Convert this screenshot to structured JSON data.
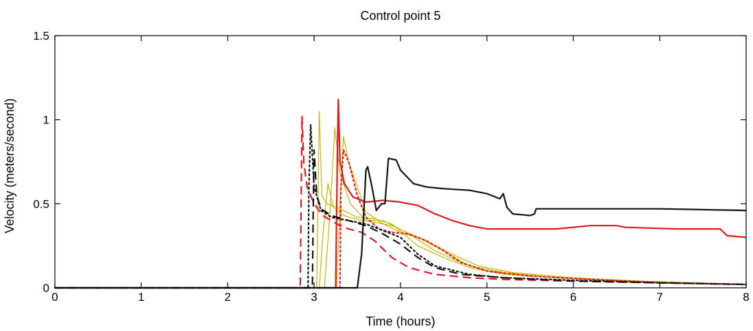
{
  "chart_data": {
    "type": "line",
    "title": "Control point 5",
    "xlabel": "Time (hours)",
    "ylabel": "Velocity (meters/second)",
    "xlim": [
      0,
      8
    ],
    "ylim": [
      0,
      1.5
    ],
    "xticks": [
      "0",
      "1",
      "2",
      "3",
      "4",
      "5",
      "6",
      "7",
      "8"
    ],
    "yticks": [
      "0",
      "0.5",
      "1",
      "1.5"
    ],
    "grid": false,
    "series": [
      {
        "color": "#c8b400",
        "dash": "solid",
        "width": 1.2,
        "points": [
          [
            0,
            0
          ],
          [
            3.03,
            0
          ],
          [
            3.04,
            0.35
          ],
          [
            3.06,
            1.05
          ],
          [
            3.09,
            0.55
          ],
          [
            3.15,
            0.5
          ],
          [
            3.3,
            0.47
          ],
          [
            3.5,
            0.42
          ],
          [
            3.7,
            0.41
          ],
          [
            3.9,
            0.38
          ],
          [
            4.2,
            0.25
          ],
          [
            4.5,
            0.18
          ],
          [
            4.8,
            0.12
          ],
          [
            5.2,
            0.08
          ],
          [
            5.8,
            0.06
          ],
          [
            6.5,
            0.04
          ],
          [
            7.2,
            0.03
          ],
          [
            8,
            0.02
          ]
        ]
      },
      {
        "color": "#c8b400",
        "dash": "solid",
        "width": 1.2,
        "points": [
          [
            0,
            0
          ],
          [
            3.06,
            0
          ],
          [
            3.1,
            0.3
          ],
          [
            3.16,
            0.62
          ],
          [
            3.22,
            0.48
          ],
          [
            3.35,
            0.43
          ],
          [
            3.55,
            0.4
          ],
          [
            3.8,
            0.4
          ],
          [
            4.1,
            0.32
          ],
          [
            4.4,
            0.22
          ],
          [
            4.7,
            0.15
          ],
          [
            5.0,
            0.1
          ],
          [
            5.5,
            0.07
          ],
          [
            6.2,
            0.05
          ],
          [
            7,
            0.03
          ],
          [
            8,
            0.02
          ]
        ]
      },
      {
        "color": "#c8b400",
        "dash": "solid",
        "width": 1.2,
        "points": [
          [
            0,
            0
          ],
          [
            3.12,
            0
          ],
          [
            3.18,
            0.42
          ],
          [
            3.24,
            0.95
          ],
          [
            3.3,
            0.68
          ],
          [
            3.42,
            0.5
          ],
          [
            3.6,
            0.4
          ],
          [
            3.9,
            0.37
          ],
          [
            4.2,
            0.3
          ],
          [
            4.5,
            0.22
          ],
          [
            4.8,
            0.13
          ],
          [
            5.2,
            0.09
          ],
          [
            5.8,
            0.06
          ],
          [
            6.5,
            0.045
          ],
          [
            7.3,
            0.03
          ],
          [
            8,
            0.02
          ]
        ]
      },
      {
        "color": "#c8b400",
        "dash": "solid",
        "width": 1.2,
        "points": [
          [
            0,
            0
          ],
          [
            3.26,
            0
          ],
          [
            3.3,
            0.5
          ],
          [
            3.34,
            0.9
          ],
          [
            3.4,
            0.75
          ],
          [
            3.5,
            0.6
          ],
          [
            3.6,
            0.45
          ],
          [
            3.8,
            0.38
          ],
          [
            4.0,
            0.33
          ],
          [
            4.3,
            0.28
          ],
          [
            4.6,
            0.2
          ],
          [
            4.9,
            0.13
          ],
          [
            5.3,
            0.09
          ],
          [
            6.0,
            0.06
          ],
          [
            6.8,
            0.04
          ],
          [
            8,
            0.02
          ]
        ]
      },
      {
        "color": "#e0191f",
        "dash": "solid",
        "width": 2.2,
        "points": [
          [
            0,
            0
          ],
          [
            3.25,
            0
          ],
          [
            3.27,
            0.8
          ],
          [
            3.28,
            1.12
          ],
          [
            3.3,
            0.75
          ],
          [
            3.35,
            0.62
          ],
          [
            3.45,
            0.54
          ],
          [
            3.6,
            0.51
          ],
          [
            3.8,
            0.52
          ],
          [
            4.0,
            0.51
          ],
          [
            4.2,
            0.49
          ],
          [
            4.4,
            0.44
          ],
          [
            4.6,
            0.4
          ],
          [
            4.8,
            0.37
          ],
          [
            5.0,
            0.35
          ],
          [
            5.5,
            0.35
          ],
          [
            5.8,
            0.35
          ],
          [
            6.2,
            0.37
          ],
          [
            6.5,
            0.37
          ],
          [
            6.6,
            0.36
          ],
          [
            7.2,
            0.35
          ],
          [
            7.7,
            0.35
          ],
          [
            7.78,
            0.31
          ],
          [
            8,
            0.3
          ]
        ]
      },
      {
        "color": "#e0191f",
        "dash": "dash",
        "width": 2.2,
        "points": [
          [
            0,
            0
          ],
          [
            2.84,
            0
          ],
          [
            2.85,
            0.5
          ],
          [
            2.86,
            1.02
          ],
          [
            2.88,
            0.75
          ],
          [
            2.92,
            0.6
          ],
          [
            3.0,
            0.5
          ],
          [
            3.1,
            0.43
          ],
          [
            3.2,
            0.4
          ],
          [
            3.3,
            0.37
          ],
          [
            3.4,
            0.35
          ],
          [
            3.55,
            0.33
          ],
          [
            3.7,
            0.28
          ],
          [
            3.9,
            0.18
          ],
          [
            4.1,
            0.12
          ],
          [
            4.4,
            0.08
          ],
          [
            4.8,
            0.06
          ],
          [
            5.2,
            0.05
          ],
          [
            6,
            0.04
          ],
          [
            7,
            0.03
          ],
          [
            8,
            0.02
          ]
        ]
      },
      {
        "color": "#e0191f",
        "dash": "dot",
        "width": 2.2,
        "points": [
          [
            0,
            0
          ],
          [
            3.3,
            0
          ],
          [
            3.31,
            0.6
          ],
          [
            3.34,
            0.82
          ],
          [
            3.4,
            0.75
          ],
          [
            3.5,
            0.55
          ],
          [
            3.6,
            0.42
          ],
          [
            3.75,
            0.35
          ],
          [
            3.9,
            0.33
          ],
          [
            4.1,
            0.32
          ],
          [
            4.3,
            0.28
          ],
          [
            4.5,
            0.22
          ],
          [
            4.7,
            0.15
          ],
          [
            5.0,
            0.1
          ],
          [
            5.5,
            0.07
          ],
          [
            6.2,
            0.05
          ],
          [
            7,
            0.03
          ],
          [
            8,
            0.02
          ]
        ]
      },
      {
        "color": "#111111",
        "dash": "solid",
        "width": 2.2,
        "points": [
          [
            0,
            0
          ],
          [
            3.5,
            0
          ],
          [
            3.55,
            0.2
          ],
          [
            3.6,
            0.7
          ],
          [
            3.62,
            0.72
          ],
          [
            3.67,
            0.6
          ],
          [
            3.72,
            0.46
          ],
          [
            3.78,
            0.5
          ],
          [
            3.82,
            0.5
          ],
          [
            3.86,
            0.77
          ],
          [
            3.95,
            0.76
          ],
          [
            4.0,
            0.7
          ],
          [
            4.15,
            0.62
          ],
          [
            4.3,
            0.6
          ],
          [
            4.5,
            0.59
          ],
          [
            4.8,
            0.58
          ],
          [
            5.0,
            0.56
          ],
          [
            5.15,
            0.53
          ],
          [
            5.19,
            0.56
          ],
          [
            5.23,
            0.48
          ],
          [
            5.3,
            0.44
          ],
          [
            5.5,
            0.43
          ],
          [
            5.55,
            0.44
          ],
          [
            5.57,
            0.47
          ],
          [
            6.0,
            0.47
          ],
          [
            7.0,
            0.47
          ],
          [
            8,
            0.46
          ]
        ]
      },
      {
        "color": "#111111",
        "dash": "dash",
        "width": 2.2,
        "points": [
          [
            0,
            0
          ],
          [
            2.98,
            0
          ],
          [
            2.99,
            0.45
          ],
          [
            3.0,
            0.82
          ],
          [
            3.03,
            0.55
          ],
          [
            3.08,
            0.47
          ],
          [
            3.2,
            0.43
          ],
          [
            3.4,
            0.4
          ],
          [
            3.6,
            0.37
          ],
          [
            3.8,
            0.32
          ],
          [
            4.0,
            0.26
          ],
          [
            4.2,
            0.18
          ],
          [
            4.4,
            0.12
          ],
          [
            4.7,
            0.08
          ],
          [
            5.2,
            0.06
          ],
          [
            6,
            0.04
          ],
          [
            7,
            0.03
          ],
          [
            8,
            0.02
          ]
        ]
      },
      {
        "color": "#111111",
        "dash": "dot",
        "width": 2.2,
        "points": [
          [
            0,
            0
          ],
          [
            2.93,
            0
          ],
          [
            2.94,
            0.6
          ],
          [
            2.96,
            0.97
          ],
          [
            3.0,
            0.6
          ],
          [
            3.08,
            0.46
          ],
          [
            3.2,
            0.42
          ],
          [
            3.4,
            0.4
          ],
          [
            3.6,
            0.38
          ],
          [
            3.8,
            0.34
          ],
          [
            4.0,
            0.3
          ],
          [
            4.2,
            0.2
          ],
          [
            4.4,
            0.13
          ],
          [
            4.8,
            0.08
          ],
          [
            5.2,
            0.06
          ],
          [
            6,
            0.045
          ],
          [
            7,
            0.03
          ],
          [
            8,
            0.02
          ]
        ]
      }
    ]
  }
}
